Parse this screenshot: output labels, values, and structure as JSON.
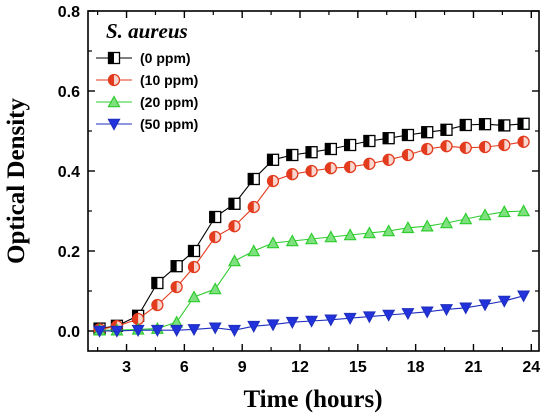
{
  "chart_data": {
    "type": "line",
    "xlabel": "Time (hours)",
    "ylabel": "Optical Density",
    "xlim": [
      1,
      24.4
    ],
    "ylim": [
      -0.05,
      0.8
    ],
    "xticks": [
      3,
      6,
      9,
      12,
      15,
      18,
      21,
      24
    ],
    "yticks": [
      0.0,
      0.2,
      0.4,
      0.6,
      0.8
    ],
    "xtick_labels": [
      "3",
      "6",
      "9",
      "12",
      "15",
      "18",
      "21",
      "24"
    ],
    "ytick_labels": [
      "0.0",
      "0.2",
      "0.4",
      "0.6",
      "0.8"
    ],
    "grid": false,
    "legend": {
      "title": "S. aureus",
      "placement": "top-left"
    },
    "x": [
      1.6,
      2.5,
      3.6,
      4.6,
      5.6,
      6.5,
      7.6,
      8.6,
      9.6,
      10.6,
      11.6,
      12.6,
      13.6,
      14.6,
      15.6,
      16.6,
      17.6,
      18.6,
      19.6,
      20.6,
      21.6,
      22.6,
      23.6
    ],
    "series": [
      {
        "name": "(0 ppm)",
        "marker": "square-half",
        "color": "#000000",
        "fill": "#ffffff",
        "values": [
          0.006,
          0.013,
          0.038,
          0.12,
          0.162,
          0.2,
          0.285,
          0.318,
          0.38,
          0.428,
          0.44,
          0.447,
          0.455,
          0.465,
          0.475,
          0.482,
          0.49,
          0.497,
          0.503,
          0.515,
          0.517,
          0.514,
          0.518
        ]
      },
      {
        "name": "(10 ppm)",
        "marker": "circle-half",
        "color": "#e23b1e",
        "fill": "#f9d7cf",
        "values": [
          0.004,
          0.012,
          0.03,
          0.065,
          0.11,
          0.16,
          0.235,
          0.262,
          0.31,
          0.375,
          0.392,
          0.4,
          0.407,
          0.41,
          0.418,
          0.428,
          0.44,
          0.455,
          0.462,
          0.458,
          0.46,
          0.465,
          0.473
        ]
      },
      {
        "name": "(20 ppm)",
        "marker": "triangle-up",
        "color": "#2ecc2e",
        "fill": "#7fe07f",
        "values": [
          0.002,
          0.002,
          0.004,
          0.006,
          0.022,
          0.085,
          0.105,
          0.175,
          0.2,
          0.22,
          0.225,
          0.23,
          0.235,
          0.24,
          0.245,
          0.25,
          0.258,
          0.262,
          0.27,
          0.28,
          0.29,
          0.298,
          0.3
        ]
      },
      {
        "name": "(50 ppm)",
        "marker": "triangle-down",
        "color": "#1f2fbf",
        "fill": "#2233dd",
        "values": [
          0.0,
          0.0,
          0.002,
          0.002,
          0.002,
          0.004,
          0.008,
          0.002,
          0.012,
          0.016,
          0.022,
          0.025,
          0.028,
          0.032,
          0.036,
          0.04,
          0.044,
          0.048,
          0.054,
          0.058,
          0.066,
          0.075,
          0.088
        ]
      }
    ]
  }
}
